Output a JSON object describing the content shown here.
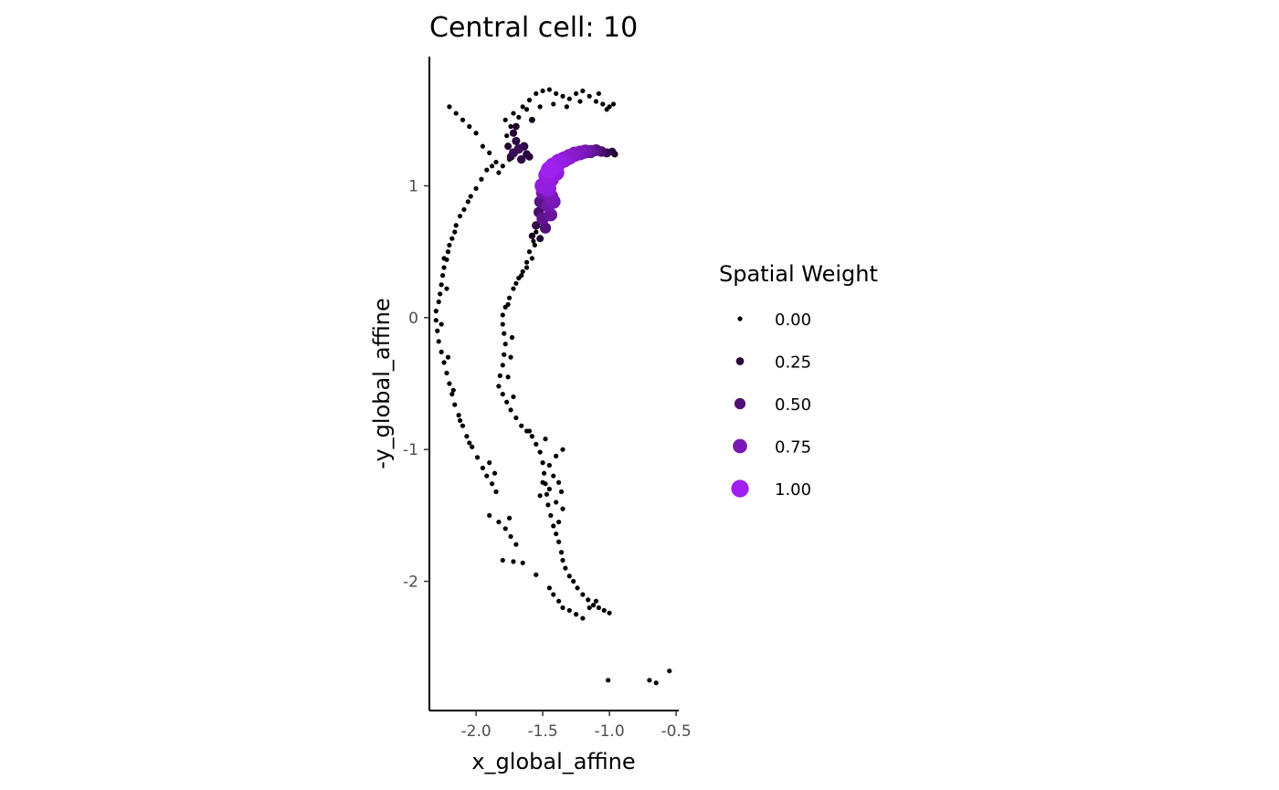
{
  "chart_data": {
    "type": "scatter",
    "title": "Central cell: 10",
    "xlabel": "x_global_affine",
    "ylabel": "-y_global_affine",
    "xlim": [
      -2.35,
      -0.48
    ],
    "ylim": [
      -2.98,
      1.98
    ],
    "x_ticks": [
      -2.0,
      -1.5,
      -1.0,
      -0.5
    ],
    "x_tick_labels": [
      "-2.0",
      "-1.5",
      "-1.0",
      "-0.5"
    ],
    "y_ticks": [
      1,
      0,
      -1,
      -2
    ],
    "y_tick_labels": [
      "1",
      "0",
      "-1",
      "-2"
    ],
    "grid": false,
    "legend": {
      "title": "Spatial Weight",
      "placement": "right",
      "entries": [
        {
          "label": "0.00",
          "value": 0.0
        },
        {
          "label": "0.25",
          "value": 0.25
        },
        {
          "label": "0.50",
          "value": 0.5
        },
        {
          "label": "0.75",
          "value": 0.75
        },
        {
          "label": "1.00",
          "value": 1.0
        }
      ]
    },
    "color_scale": {
      "low": "#000000",
      "high": "#a020f0"
    },
    "background_points": [
      [
        -2.2,
        1.6
      ],
      [
        -2.15,
        1.55
      ],
      [
        -2.1,
        1.5
      ],
      [
        -2.05,
        1.45
      ],
      [
        -2.0,
        1.4
      ],
      [
        -1.95,
        1.3
      ],
      [
        -1.9,
        1.25
      ],
      [
        -1.85,
        1.18
      ],
      [
        -1.88,
        1.15
      ],
      [
        -1.92,
        1.12
      ],
      [
        -1.96,
        1.05
      ],
      [
        -2.0,
        0.98
      ],
      [
        -2.04,
        0.92
      ],
      [
        -2.06,
        0.88
      ],
      [
        -2.09,
        0.82
      ],
      [
        -2.12,
        0.77
      ],
      [
        -2.15,
        0.7
      ],
      [
        -2.16,
        0.65
      ],
      [
        -2.18,
        0.6
      ],
      [
        -2.2,
        0.55
      ],
      [
        -2.21,
        0.5
      ],
      [
        -2.22,
        0.44
      ],
      [
        -2.24,
        0.38
      ],
      [
        -2.25,
        0.32
      ],
      [
        -2.26,
        0.25
      ],
      [
        -2.27,
        0.18
      ],
      [
        -2.28,
        0.12
      ],
      [
        -2.3,
        0.05
      ],
      [
        -2.3,
        -0.02
      ],
      [
        -2.29,
        -0.1
      ],
      [
        -2.28,
        -0.18
      ],
      [
        -2.26,
        -0.26
      ],
      [
        -2.24,
        -0.34
      ],
      [
        -2.22,
        -0.42
      ],
      [
        -2.2,
        -0.5
      ],
      [
        -2.18,
        -0.58
      ],
      [
        -2.16,
        -0.66
      ],
      [
        -2.13,
        -0.74
      ],
      [
        -2.1,
        -0.82
      ],
      [
        -2.07,
        -0.9
      ],
      [
        -2.03,
        -0.98
      ],
      [
        -1.99,
        -1.06
      ],
      [
        -1.95,
        -1.14
      ],
      [
        -1.92,
        -1.2
      ],
      [
        -1.88,
        -1.26
      ],
      [
        -1.85,
        -1.32
      ],
      [
        -2.24,
        0.45
      ],
      [
        -2.22,
        0.22
      ],
      [
        -2.26,
        -0.05
      ],
      [
        -2.21,
        -0.3
      ],
      [
        -2.17,
        -0.55
      ],
      [
        -2.12,
        -0.78
      ],
      [
        -2.05,
        -0.95
      ],
      [
        -1.9,
        -1.1
      ],
      [
        -1.86,
        -1.18
      ],
      [
        -1.9,
        -1.5
      ],
      [
        -1.83,
        -1.55
      ],
      [
        -1.78,
        -1.6
      ],
      [
        -1.74,
        -1.66
      ],
      [
        -1.7,
        -1.72
      ],
      [
        -1.8,
        -1.84
      ],
      [
        -1.72,
        -1.85
      ],
      [
        -1.65,
        -1.86
      ],
      [
        -1.55,
        -1.95
      ],
      [
        -1.75,
        -1.52
      ],
      [
        -1.75,
        1.2
      ],
      [
        -1.8,
        1.15
      ],
      [
        -1.83,
        1.1
      ],
      [
        -1.78,
        1.5
      ],
      [
        -1.72,
        1.55
      ],
      [
        -1.65,
        1.6
      ],
      [
        -1.6,
        1.65
      ],
      [
        -1.55,
        1.7
      ],
      [
        -1.5,
        1.72
      ],
      [
        -1.45,
        1.73
      ],
      [
        -1.4,
        1.7
      ],
      [
        -1.35,
        1.68
      ],
      [
        -1.3,
        1.66
      ],
      [
        -1.25,
        1.7
      ],
      [
        -1.2,
        1.72
      ],
      [
        -1.15,
        1.68
      ],
      [
        -1.1,
        1.64
      ],
      [
        -1.05,
        1.62
      ],
      [
        -1.0,
        1.6
      ],
      [
        -0.97,
        1.62
      ],
      [
        -1.08,
        1.7
      ],
      [
        -1.22,
        1.64
      ],
      [
        -1.32,
        1.6
      ],
      [
        -1.42,
        1.62
      ],
      [
        -1.52,
        1.6
      ],
      [
        -1.62,
        1.58
      ],
      [
        -1.68,
        1.52
      ],
      [
        -1.74,
        1.45
      ],
      [
        -1.77,
        1.38
      ],
      [
        -1.02,
        1.58
      ],
      [
        -1.55,
        0.65
      ],
      [
        -1.57,
        0.58
      ],
      [
        -1.6,
        0.5
      ],
      [
        -1.62,
        0.42
      ],
      [
        -1.65,
        0.35
      ],
      [
        -1.68,
        0.3
      ],
      [
        -1.72,
        0.22
      ],
      [
        -1.75,
        0.15
      ],
      [
        -1.78,
        0.08
      ],
      [
        -1.8,
        0.02
      ],
      [
        -1.8,
        -0.05
      ],
      [
        -1.79,
        -0.12
      ],
      [
        -1.78,
        -0.2
      ],
      [
        -1.79,
        -0.28
      ],
      [
        -1.8,
        -0.36
      ],
      [
        -1.82,
        -0.44
      ],
      [
        -1.83,
        -0.52
      ],
      [
        -1.8,
        -0.58
      ],
      [
        -1.77,
        -0.64
      ],
      [
        -1.74,
        -0.7
      ],
      [
        -1.7,
        -0.76
      ],
      [
        -1.66,
        -0.82
      ],
      [
        -1.62,
        -0.86
      ],
      [
        -1.58,
        -0.9
      ],
      [
        -1.55,
        -0.96
      ],
      [
        -1.52,
        -1.02
      ],
      [
        -1.5,
        -1.1
      ],
      [
        -1.49,
        -1.18
      ],
      [
        -1.48,
        -1.26
      ],
      [
        -1.47,
        -1.34
      ],
      [
        -1.46,
        -1.42
      ],
      [
        -1.44,
        -1.5
      ],
      [
        -1.42,
        -1.58
      ],
      [
        -1.4,
        -1.64
      ],
      [
        -1.38,
        -1.7
      ],
      [
        -1.36,
        -1.78
      ],
      [
        -1.35,
        -1.84
      ],
      [
        -1.33,
        -1.9
      ],
      [
        -1.3,
        -1.96
      ],
      [
        -1.27,
        -2.0
      ],
      [
        -1.24,
        -2.05
      ],
      [
        -1.2,
        -2.1
      ],
      [
        -1.16,
        -2.14
      ],
      [
        -1.12,
        -2.18
      ],
      [
        -1.08,
        -2.2
      ],
      [
        -1.04,
        -2.22
      ],
      [
        -1.0,
        -2.24
      ],
      [
        -1.45,
        -2.05
      ],
      [
        -1.42,
        -2.1
      ],
      [
        -1.38,
        -2.15
      ],
      [
        -1.35,
        -2.2
      ],
      [
        -1.3,
        -2.22
      ],
      [
        -1.25,
        -2.25
      ],
      [
        -1.2,
        -2.28
      ],
      [
        -1.15,
        -2.2
      ],
      [
        -1.1,
        -2.15
      ],
      [
        -1.35,
        -1.0
      ],
      [
        -1.4,
        -1.05
      ],
      [
        -1.45,
        -1.12
      ],
      [
        -1.42,
        -1.2
      ],
      [
        -1.38,
        -1.25
      ],
      [
        -1.36,
        -1.32
      ],
      [
        -1.4,
        -1.4
      ],
      [
        -1.35,
        -1.45
      ],
      [
        -1.38,
        -1.55
      ],
      [
        -1.5,
        -1.25
      ],
      [
        -1.52,
        -1.35
      ],
      [
        -1.45,
        -1.3
      ],
      [
        -1.48,
        -0.92
      ],
      [
        -1.6,
        -0.86
      ],
      [
        -1.72,
        -0.6
      ],
      [
        -1.76,
        -0.45
      ],
      [
        -1.74,
        -0.3
      ],
      [
        -1.73,
        -0.15
      ],
      [
        -1.76,
        0.1
      ],
      [
        -1.7,
        0.26
      ],
      [
        -1.66,
        0.32
      ],
      [
        -1.62,
        0.38
      ],
      [
        -1.58,
        0.45
      ],
      [
        -1.56,
        0.55
      ],
      [
        -1.01,
        -2.75
      ],
      [
        -0.7,
        -2.75
      ],
      [
        -0.65,
        -2.77
      ],
      [
        -0.55,
        -2.68
      ]
    ],
    "weighted_points": [
      [
        -1.55,
        0.7,
        0.3
      ],
      [
        -1.53,
        0.8,
        0.45
      ],
      [
        -1.52,
        0.88,
        0.55
      ],
      [
        -1.5,
        0.95,
        0.7
      ],
      [
        -1.48,
        1.02,
        0.85
      ],
      [
        -1.47,
        1.08,
        0.95
      ],
      [
        -1.45,
        1.12,
        1.0
      ],
      [
        -1.42,
        1.15,
        0.98
      ],
      [
        -1.38,
        1.18,
        0.95
      ],
      [
        -1.34,
        1.2,
        0.9
      ],
      [
        -1.3,
        1.22,
        0.86
      ],
      [
        -1.26,
        1.24,
        0.82
      ],
      [
        -1.22,
        1.25,
        0.78
      ],
      [
        -1.18,
        1.26,
        0.72
      ],
      [
        -1.14,
        1.26,
        0.65
      ],
      [
        -1.1,
        1.27,
        0.55
      ],
      [
        -1.06,
        1.26,
        0.45
      ],
      [
        -1.02,
        1.25,
        0.35
      ],
      [
        -0.98,
        1.26,
        0.25
      ],
      [
        -0.96,
        1.24,
        0.15
      ],
      [
        -1.5,
        0.75,
        0.6
      ],
      [
        -1.46,
        0.85,
        0.7
      ],
      [
        -1.44,
        0.92,
        0.78
      ],
      [
        -1.5,
        1.0,
        0.9
      ],
      [
        -1.46,
        0.98,
        0.92
      ],
      [
        -1.52,
        0.6,
        0.2
      ],
      [
        -1.58,
        0.62,
        0.15
      ],
      [
        -1.48,
        0.68,
        0.5
      ],
      [
        -1.44,
        0.78,
        0.65
      ],
      [
        -1.42,
        0.88,
        0.75
      ],
      [
        -1.44,
        1.05,
        0.9
      ],
      [
        -1.4,
        1.1,
        0.92
      ],
      [
        -1.72,
        1.25,
        0.35
      ],
      [
        -1.68,
        1.28,
        0.38
      ],
      [
        -1.64,
        1.3,
        0.3
      ],
      [
        -1.7,
        1.34,
        0.28
      ],
      [
        -1.74,
        1.22,
        0.25
      ],
      [
        -1.66,
        1.2,
        0.3
      ],
      [
        -1.62,
        1.24,
        0.26
      ],
      [
        -1.76,
        1.3,
        0.2
      ],
      [
        -1.72,
        1.4,
        0.22
      ],
      [
        -1.7,
        1.45,
        0.18
      ],
      [
        -1.6,
        1.22,
        0.22
      ],
      [
        -1.58,
        1.5,
        0.12
      ]
    ]
  }
}
